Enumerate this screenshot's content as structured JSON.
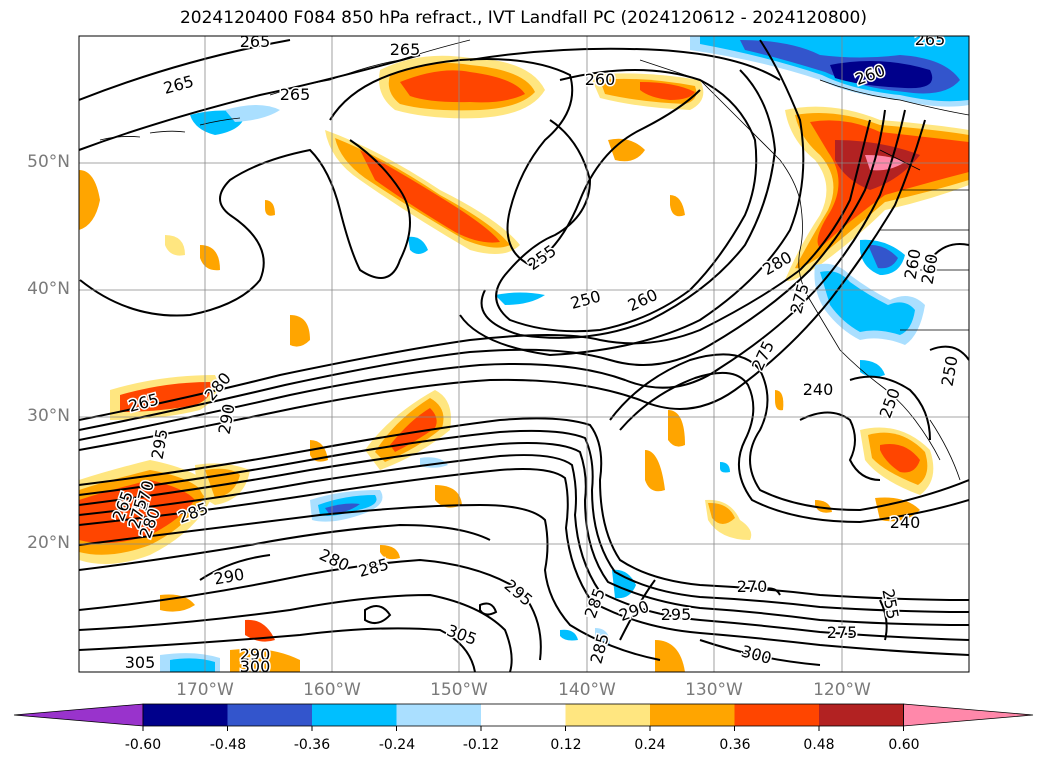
{
  "title": "2024120400 F084 850 hPa refract., IVT Landfall PC (2024120612 - 2024120800)",
  "lat_labels": [
    "50°N",
    "40°N",
    "30°N",
    "20°N"
  ],
  "lon_labels": [
    "170°W",
    "160°W",
    "150°W",
    "140°W",
    "130°W",
    "120°W"
  ],
  "colorbar": {
    "ticks": [
      "-0.60",
      "-0.48",
      "-0.36",
      "-0.24",
      "-0.12",
      "0.12",
      "0.24",
      "0.36",
      "0.48",
      "0.60"
    ],
    "colors": [
      "#9933cc",
      "#00008b",
      "#3355cc",
      "#00bfff",
      "#aadfff",
      "#ffffff",
      "#ffe680",
      "#ffa500",
      "#ff4500",
      "#b22222",
      "#ff88aa"
    ]
  },
  "contour_labels": [
    "265",
    "265",
    "265",
    "265",
    "260",
    "265",
    "260",
    "255",
    "250",
    "260",
    "280",
    "260",
    "275",
    "275",
    "265",
    "280",
    "290",
    "295",
    "265",
    "270",
    "275",
    "280",
    "285",
    "290",
    "280",
    "285",
    "260",
    "240",
    "250",
    "250",
    "240",
    "285",
    "290",
    "295",
    "270",
    "275",
    "255",
    "285",
    "305",
    "295",
    "305",
    "290",
    "300",
    "300"
  ]
}
